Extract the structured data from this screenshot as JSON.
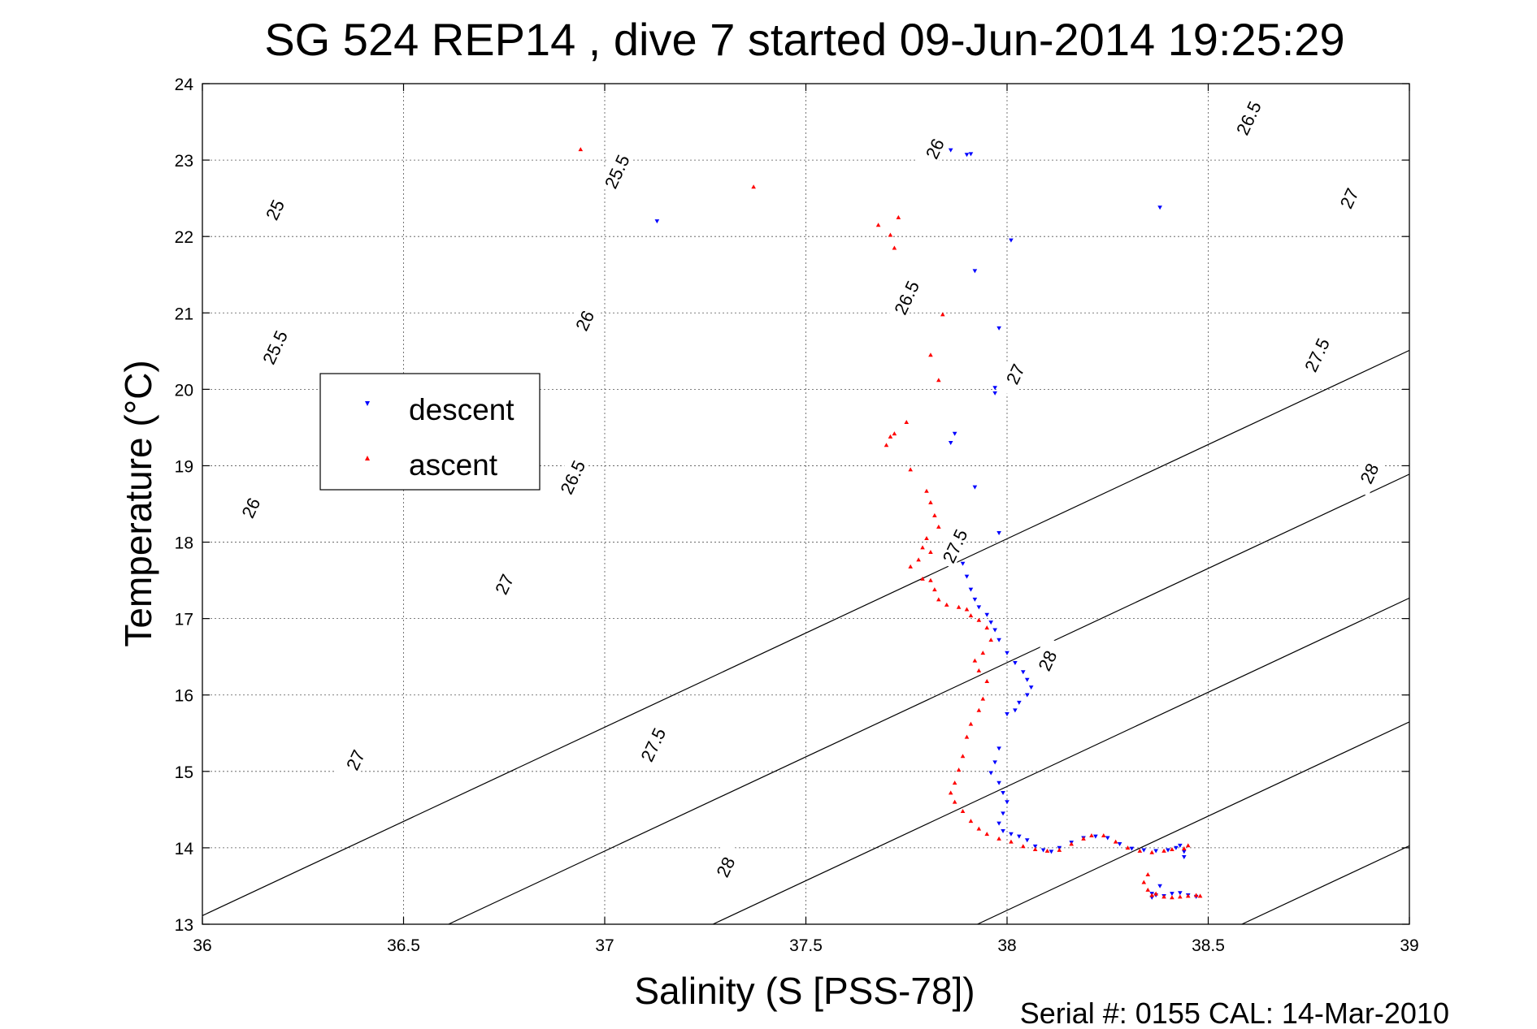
{
  "chart_data": {
    "type": "scatter",
    "title": "SG 524   REP14  , dive 7 started 09-Jun-2014 19:25:29",
    "xlabel": "Salinity (S [PSS-78])",
    "ylabel": "Temperature (°C)",
    "xlim": [
      36,
      39
    ],
    "ylim": [
      13,
      24
    ],
    "x_ticks": [
      "36",
      "36.5",
      "37",
      "37.5",
      "38",
      "38.5",
      "39"
    ],
    "y_ticks": [
      "13",
      "14",
      "15",
      "16",
      "17",
      "18",
      "19",
      "20",
      "21",
      "22",
      "23",
      "24"
    ],
    "grid": true,
    "legend_position": "left",
    "footer": "Serial #: 0155  CAL: 14-Mar-2010",
    "contours": {
      "levels": [
        25,
        25.5,
        26,
        26.5,
        27,
        27.5,
        28
      ],
      "labels": [
        {
          "text": "25",
          "s": 36.18,
          "t": 22.35
        },
        {
          "text": "25.5",
          "s": 37.03,
          "t": 22.85
        },
        {
          "text": "26",
          "s": 37.82,
          "t": 23.15
        },
        {
          "text": "26.5",
          "s": 38.6,
          "t": 23.55
        },
        {
          "text": "25.5",
          "s": 36.18,
          "t": 20.55
        },
        {
          "text": "26",
          "s": 36.95,
          "t": 20.9
        },
        {
          "text": "26.5",
          "s": 37.75,
          "t": 21.2
        },
        {
          "text": "27",
          "s": 38.85,
          "t": 22.5
        },
        {
          "text": "26",
          "s": 36.12,
          "t": 18.45
        },
        {
          "text": "26.5",
          "s": 36.92,
          "t": 18.85
        },
        {
          "text": "27",
          "s": 38.02,
          "t": 20.2
        },
        {
          "text": "27.5",
          "s": 38.77,
          "t": 20.45
        },
        {
          "text": "27",
          "s": 36.75,
          "t": 17.45
        },
        {
          "text": "27.5",
          "s": 37.87,
          "t": 17.95
        },
        {
          "text": "28",
          "s": 38.9,
          "t": 18.9
        },
        {
          "text": "27",
          "s": 36.38,
          "t": 15.15
        },
        {
          "text": "27.5",
          "s": 37.12,
          "t": 15.35
        },
        {
          "text": "28",
          "s": 38.1,
          "t": 16.45
        },
        {
          "text": "28",
          "s": 37.3,
          "t": 13.75
        }
      ]
    },
    "series": [
      {
        "name": "descent",
        "color": "#0000ff",
        "marker": "triangle-down",
        "points": [
          [
            37.13,
            22.2
          ],
          [
            37.86,
            23.13
          ],
          [
            37.9,
            23.07
          ],
          [
            37.91,
            23.08
          ],
          [
            38.38,
            22.38
          ],
          [
            38.01,
            21.95
          ],
          [
            37.92,
            21.55
          ],
          [
            37.98,
            20.8
          ],
          [
            37.97,
            20.02
          ],
          [
            37.97,
            19.95
          ],
          [
            37.87,
            19.42
          ],
          [
            37.86,
            19.3
          ],
          [
            37.92,
            18.72
          ],
          [
            37.98,
            18.12
          ],
          [
            37.89,
            17.72
          ],
          [
            37.9,
            17.55
          ],
          [
            37.91,
            17.38
          ],
          [
            37.92,
            17.25
          ],
          [
            37.93,
            17.15
          ],
          [
            37.95,
            17.05
          ],
          [
            37.96,
            16.95
          ],
          [
            37.97,
            16.85
          ],
          [
            37.98,
            16.72
          ],
          [
            38.0,
            16.55
          ],
          [
            38.02,
            16.42
          ],
          [
            38.04,
            16.3
          ],
          [
            38.05,
            16.2
          ],
          [
            38.06,
            16.1
          ],
          [
            38.05,
            16.0
          ],
          [
            38.03,
            15.9
          ],
          [
            38.02,
            15.8
          ],
          [
            38.0,
            15.75
          ],
          [
            37.98,
            15.3
          ],
          [
            37.97,
            15.12
          ],
          [
            37.96,
            14.98
          ],
          [
            37.98,
            14.85
          ],
          [
            37.99,
            14.72
          ],
          [
            38.0,
            14.6
          ],
          [
            37.99,
            14.45
          ],
          [
            37.98,
            14.32
          ],
          [
            37.99,
            14.22
          ],
          [
            38.01,
            14.18
          ],
          [
            38.03,
            14.15
          ],
          [
            38.05,
            14.1
          ],
          [
            38.07,
            14.02
          ],
          [
            38.09,
            13.97
          ],
          [
            38.11,
            13.95
          ],
          [
            38.13,
            14.0
          ],
          [
            38.16,
            14.07
          ],
          [
            38.19,
            14.13
          ],
          [
            38.22,
            14.15
          ],
          [
            38.25,
            14.13
          ],
          [
            38.28,
            14.05
          ],
          [
            38.31,
            13.99
          ],
          [
            38.34,
            13.97
          ],
          [
            38.37,
            13.96
          ],
          [
            38.4,
            13.97
          ],
          [
            38.42,
            14.0
          ],
          [
            38.44,
            13.95
          ],
          [
            38.44,
            13.88
          ],
          [
            38.43,
            14.03
          ],
          [
            38.38,
            13.5
          ],
          [
            38.36,
            13.4
          ],
          [
            38.37,
            13.38
          ],
          [
            38.39,
            13.37
          ],
          [
            38.41,
            13.4
          ],
          [
            38.43,
            13.41
          ],
          [
            38.45,
            13.38
          ],
          [
            38.47,
            13.36
          ],
          [
            38.36,
            13.35
          ]
        ]
      },
      {
        "name": "ascent",
        "color": "#ff0000",
        "marker": "triangle-up",
        "points": [
          [
            36.94,
            23.14
          ],
          [
            37.37,
            22.65
          ],
          [
            37.68,
            22.15
          ],
          [
            37.73,
            22.25
          ],
          [
            37.71,
            22.02
          ],
          [
            37.72,
            21.85
          ],
          [
            37.84,
            20.98
          ],
          [
            37.81,
            20.45
          ],
          [
            37.83,
            20.12
          ],
          [
            37.75,
            19.57
          ],
          [
            37.72,
            19.42
          ],
          [
            37.71,
            19.38
          ],
          [
            37.7,
            19.27
          ],
          [
            37.76,
            18.95
          ],
          [
            37.8,
            18.67
          ],
          [
            37.81,
            18.52
          ],
          [
            37.82,
            18.35
          ],
          [
            37.83,
            18.2
          ],
          [
            37.8,
            18.05
          ],
          [
            37.79,
            17.93
          ],
          [
            37.81,
            17.87
          ],
          [
            37.78,
            17.77
          ],
          [
            37.76,
            17.68
          ],
          [
            37.79,
            17.52
          ],
          [
            37.81,
            17.5
          ],
          [
            37.82,
            17.38
          ],
          [
            37.83,
            17.25
          ],
          [
            37.85,
            17.18
          ],
          [
            37.88,
            17.15
          ],
          [
            37.9,
            17.12
          ],
          [
            37.91,
            17.04
          ],
          [
            37.93,
            16.98
          ],
          [
            37.95,
            16.88
          ],
          [
            37.96,
            16.72
          ],
          [
            37.94,
            16.55
          ],
          [
            37.92,
            16.45
          ],
          [
            37.93,
            16.32
          ],
          [
            37.95,
            16.18
          ],
          [
            37.94,
            15.95
          ],
          [
            37.93,
            15.8
          ],
          [
            37.91,
            15.62
          ],
          [
            37.9,
            15.45
          ],
          [
            37.89,
            15.2
          ],
          [
            37.88,
            15.02
          ],
          [
            37.87,
            14.85
          ],
          [
            37.86,
            14.72
          ],
          [
            37.87,
            14.6
          ],
          [
            37.89,
            14.48
          ],
          [
            37.91,
            14.35
          ],
          [
            37.93,
            14.25
          ],
          [
            37.95,
            14.18
          ],
          [
            37.98,
            14.12
          ],
          [
            38.01,
            14.08
          ],
          [
            38.04,
            14.02
          ],
          [
            38.07,
            13.98
          ],
          [
            38.1,
            13.96
          ],
          [
            38.13,
            13.97
          ],
          [
            38.16,
            14.05
          ],
          [
            38.19,
            14.12
          ],
          [
            38.21,
            14.16
          ],
          [
            38.24,
            14.16
          ],
          [
            38.27,
            14.08
          ],
          [
            38.3,
            14.0
          ],
          [
            38.33,
            13.96
          ],
          [
            38.36,
            13.94
          ],
          [
            38.39,
            13.96
          ],
          [
            38.41,
            13.98
          ],
          [
            38.44,
            13.99
          ],
          [
            38.45,
            14.03
          ],
          [
            38.35,
            13.65
          ],
          [
            38.34,
            13.55
          ],
          [
            38.35,
            13.45
          ],
          [
            38.37,
            13.4
          ],
          [
            38.39,
            13.36
          ],
          [
            38.41,
            13.35
          ],
          [
            38.43,
            13.36
          ],
          [
            38.45,
            13.37
          ],
          [
            38.47,
            13.38
          ],
          [
            38.48,
            13.37
          ],
          [
            38.36,
            13.38
          ]
        ]
      }
    ]
  }
}
